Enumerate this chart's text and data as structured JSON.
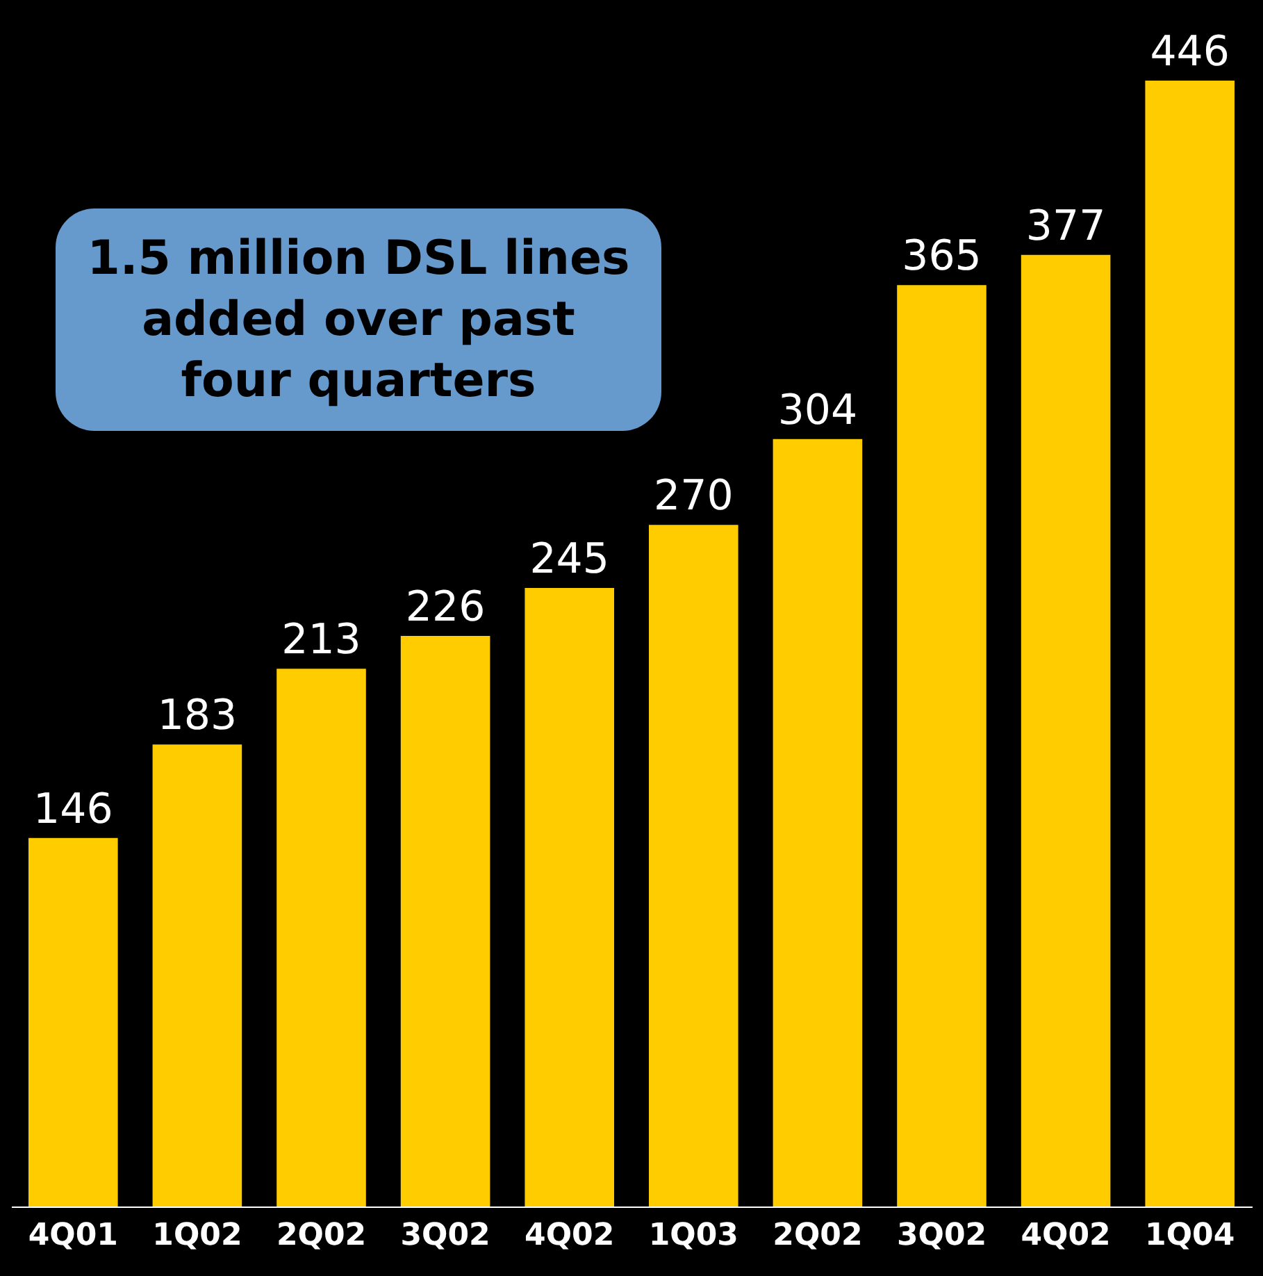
{
  "chart_data": {
    "type": "bar",
    "categories": [
      "4Q01",
      "1Q02",
      "2Q02",
      "3Q02",
      "4Q02",
      "1Q03",
      "2Q02",
      "3Q02",
      "4Q02",
      "1Q04"
    ],
    "values": [
      146,
      183,
      213,
      226,
      245,
      270,
      304,
      365,
      377,
      446
    ],
    "color": "#ffcc00",
    "data_labels": true,
    "annotations": [
      "1.5 million DSL lines added over past four quarters"
    ]
  }
}
